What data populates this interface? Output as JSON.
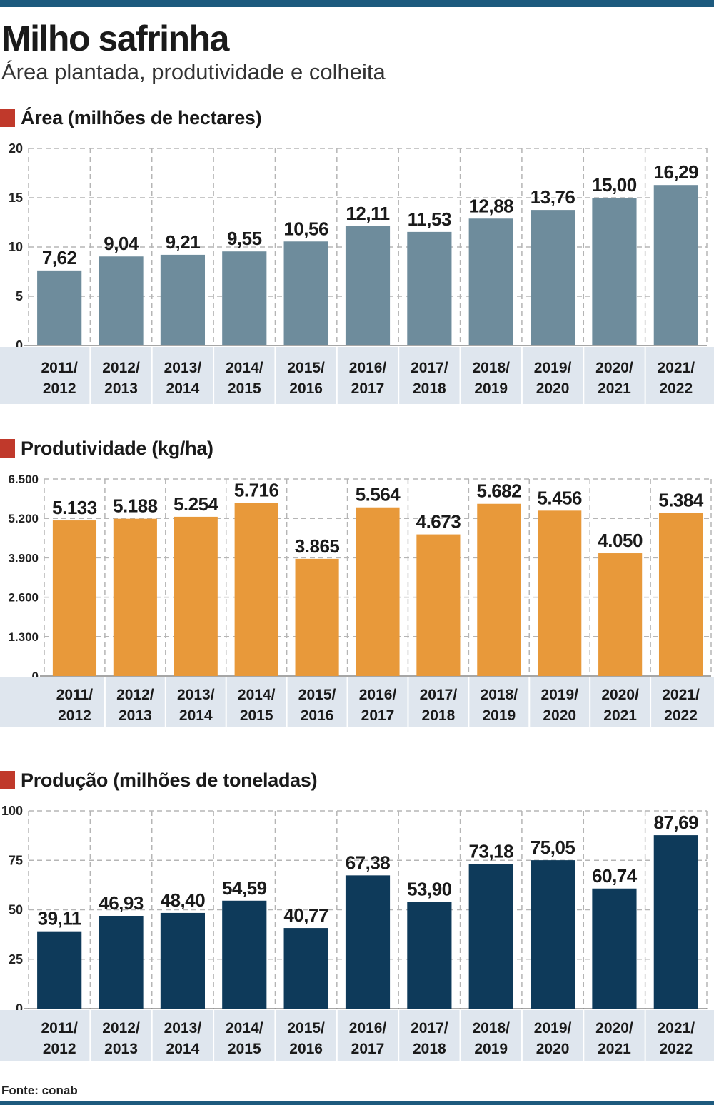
{
  "header": {
    "title": "Milho safrinha",
    "subtitle": "Área plantada, produtividade e colheita"
  },
  "colors": {
    "top_bar": "#1d5a7e",
    "section_marker": "#c0392b",
    "label_band": "#dfe6ee",
    "grid": "#b5b5b5"
  },
  "sections": [
    {
      "title": "Área (milhões de hectares)"
    },
    {
      "title": "Produtividade (kg/ha)"
    },
    {
      "title": "Produção (milhões de toneladas)"
    }
  ],
  "chart_data": [
    {
      "type": "bar",
      "title": "Área (milhões de hectares)",
      "categories": [
        "2011/ 2012",
        "2012/ 2013",
        "2013/ 2014",
        "2014/ 2015",
        "2015/ 2016",
        "2016/ 2017",
        "2017/ 2018",
        "2018/ 2019",
        "2019/ 2020",
        "2020/ 2021",
        "2021/ 2022"
      ],
      "values": [
        7.62,
        9.04,
        9.21,
        9.55,
        10.56,
        12.11,
        11.53,
        12.88,
        13.76,
        15.0,
        16.29
      ],
      "value_labels": [
        "7,62",
        "9,04",
        "9,21",
        "9,55",
        "10,56",
        "12,11",
        "11,53",
        "12,88",
        "13,76",
        "15,00",
        "16,29"
      ],
      "yticks": [
        0,
        5,
        10,
        15,
        20
      ],
      "ytick_labels": [
        "0",
        "5",
        "10",
        "15",
        "20"
      ],
      "ylim": [
        0,
        20
      ],
      "bar_color": "#6e8c9c",
      "grid": true,
      "legend": "none"
    },
    {
      "type": "bar",
      "title": "Produtividade (kg/ha)",
      "categories": [
        "2011/ 2012",
        "2012/ 2013",
        "2013/ 2014",
        "2014/ 2015",
        "2015/ 2016",
        "2016/ 2017",
        "2017/ 2018",
        "2018/ 2019",
        "2019/ 2020",
        "2020/ 2021",
        "2021/ 2022"
      ],
      "values": [
        5133,
        5188,
        5254,
        5716,
        3865,
        5564,
        4673,
        5682,
        5456,
        4050,
        5384
      ],
      "value_labels": [
        "5.133",
        "5.188",
        "5.254",
        "5.716",
        "3.865",
        "5.564",
        "4.673",
        "5.682",
        "5.456",
        "4.050",
        "5.384"
      ],
      "yticks": [
        0,
        1300,
        2600,
        3900,
        5200,
        6500
      ],
      "ytick_labels": [
        "0",
        "1.300",
        "2.600",
        "3.900",
        "5.200",
        "6.500"
      ],
      "ylim": [
        0,
        6500
      ],
      "bar_color": "#e8993a",
      "grid": true,
      "legend": "none"
    },
    {
      "type": "bar",
      "title": "Produção (milhões de toneladas)",
      "categories": [
        "2011/ 2012",
        "2012/ 2013",
        "2013/ 2014",
        "2014/ 2015",
        "2015/ 2016",
        "2016/ 2017",
        "2017/ 2018",
        "2018/ 2019",
        "2019/ 2020",
        "2020/ 2021",
        "2021/ 2022"
      ],
      "values": [
        39.11,
        46.93,
        48.4,
        54.59,
        40.77,
        67.38,
        53.9,
        73.18,
        75.05,
        60.74,
        87.69
      ],
      "value_labels": [
        "39,11",
        "46,93",
        "48,40",
        "54,59",
        "40,77",
        "67,38",
        "53,90",
        "73,18",
        "75,05",
        "60,74",
        "87,69"
      ],
      "yticks": [
        0,
        25,
        50,
        75,
        100
      ],
      "ytick_labels": [
        "0",
        "25",
        "50",
        "75",
        "100"
      ],
      "ylim": [
        0,
        100
      ],
      "bar_color": "#0e3a5a",
      "grid": true,
      "legend": "none"
    }
  ],
  "footer": {
    "source": "Fonte: conab"
  }
}
